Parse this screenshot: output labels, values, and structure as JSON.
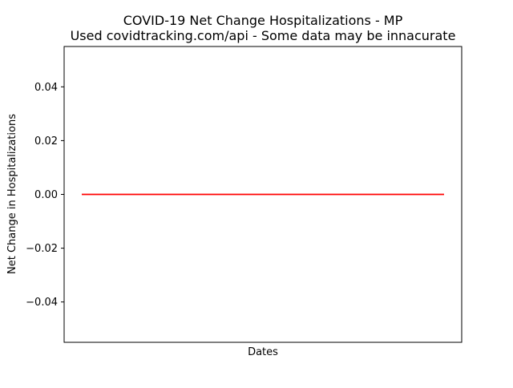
{
  "chart_data": {
    "type": "line",
    "title": "COVID-19 Net Change Hospitalizations - MP",
    "subtitle": "Used covidtracking.com/api - Some data may be innacurate",
    "xlabel": "Dates",
    "ylabel": "Net Change in Hospitalizations",
    "ylim": [
      -0.055,
      0.055
    ],
    "yticks": [
      {
        "value": 0.04,
        "label": "0.04"
      },
      {
        "value": 0.02,
        "label": "0.02"
      },
      {
        "value": 0.0,
        "label": "0.00"
      },
      {
        "value": -0.02,
        "label": "−0.02"
      },
      {
        "value": -0.04,
        "label": "−0.04"
      }
    ],
    "xticks_visible": false,
    "grid": false,
    "series": [
      {
        "color": "#ff0000",
        "x_range": [
          0,
          1
        ],
        "values": [
          0,
          0
        ]
      }
    ]
  }
}
